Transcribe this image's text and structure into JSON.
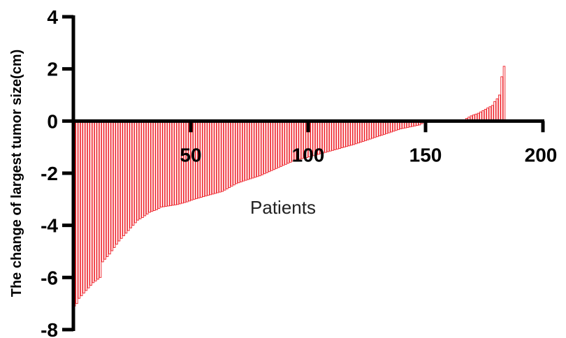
{
  "chart_data": {
    "type": "bar",
    "title": "",
    "xlabel": "Patients",
    "ylabel": "The change of largest tumor size(cm)",
    "x_ticks": [
      50,
      100,
      150,
      200
    ],
    "y_ticks": [
      4,
      2,
      0,
      -2,
      -4,
      -6,
      -8
    ],
    "xlim": [
      0,
      200
    ],
    "ylim": [
      -8,
      4
    ],
    "grid": false,
    "legend": "none",
    "bar_color": "#ee1c24",
    "patient_count": 184,
    "waterfall_anchors": [
      [
        1,
        -7.1
      ],
      [
        2,
        -7.0
      ],
      [
        3,
        -6.8
      ],
      [
        5,
        -6.6
      ],
      [
        7,
        -6.4
      ],
      [
        9,
        -6.2
      ],
      [
        12,
        -6.0
      ],
      [
        13,
        -5.4
      ],
      [
        16,
        -5.1
      ],
      [
        20,
        -4.6
      ],
      [
        24,
        -4.2
      ],
      [
        28,
        -3.8
      ],
      [
        30,
        -3.7
      ],
      [
        33,
        -3.5
      ],
      [
        36,
        -3.4
      ],
      [
        38,
        -3.3
      ],
      [
        45,
        -3.2
      ],
      [
        49,
        -3.1
      ],
      [
        52,
        -3.0
      ],
      [
        56,
        -2.9
      ],
      [
        60,
        -2.8
      ],
      [
        64,
        -2.7
      ],
      [
        66,
        -2.6
      ],
      [
        70,
        -2.4
      ],
      [
        73,
        -2.3
      ],
      [
        80,
        -2.1
      ],
      [
        85,
        -1.9
      ],
      [
        90,
        -1.7
      ],
      [
        95,
        -1.5
      ],
      [
        100,
        -1.4
      ],
      [
        110,
        -1.15
      ],
      [
        120,
        -0.9
      ],
      [
        130,
        -0.6
      ],
      [
        135,
        -0.45
      ],
      [
        140,
        -0.3
      ],
      [
        148,
        -0.15
      ],
      [
        150,
        -0.05
      ],
      [
        166,
        0.0
      ],
      [
        167,
        0.05
      ],
      [
        168,
        0.1
      ],
      [
        170,
        0.2
      ],
      [
        173,
        0.3
      ],
      [
        175,
        0.4
      ],
      [
        177,
        0.5
      ],
      [
        179,
        0.6
      ],
      [
        180,
        0.75
      ],
      [
        181,
        0.85
      ],
      [
        182,
        1.0
      ],
      [
        183,
        1.7
      ],
      [
        184,
        2.1
      ]
    ]
  }
}
